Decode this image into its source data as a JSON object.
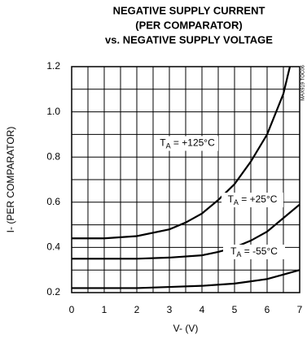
{
  "chart_data": {
    "type": "line",
    "title": [
      "NEGATIVE SUPPLY CURRENT",
      "(PER COMPARATOR)",
      "vs. NEGATIVE SUPPLY VOLTAGE"
    ],
    "xlabel": "V- (V)",
    "ylabel": "I- (PER COMPARATOR)",
    "watermark": "MAX919 TOC06",
    "xlim": [
      0,
      7
    ],
    "xticks": [
      0,
      1,
      2,
      3,
      4,
      5,
      6,
      7
    ],
    "ylim": [
      0.2,
      1.2
    ],
    "yticks": [
      0.2,
      0.4,
      0.6,
      0.8,
      {
        "value": 1.0,
        "label": "1.0"
      },
      1.2
    ],
    "grid": true,
    "minor_grid": true,
    "color": "#000000",
    "series": [
      {
        "label_parts": [
          "T",
          "A",
          " = +125°C"
        ],
        "x": [
          0,
          1,
          2,
          3,
          3.5,
          4,
          4.5,
          5,
          5.5,
          6,
          6.5,
          6.7
        ],
        "values": [
          0.44,
          0.44,
          0.45,
          0.48,
          0.51,
          0.55,
          0.61,
          0.68,
          0.78,
          0.9,
          1.08,
          1.2
        ]
      },
      {
        "label_parts": [
          "T",
          "A",
          " = +25°C"
        ],
        "x": [
          0,
          1,
          2,
          3,
          4,
          4.5,
          5,
          5.5,
          6,
          6.5,
          7
        ],
        "values": [
          0.35,
          0.35,
          0.35,
          0.355,
          0.365,
          0.38,
          0.4,
          0.43,
          0.47,
          0.53,
          0.59
        ]
      },
      {
        "label_parts": [
          "T",
          "A",
          " = -55°C"
        ],
        "x": [
          0,
          1,
          2,
          3,
          4,
          5,
          5.5,
          6,
          6.5,
          7
        ],
        "values": [
          0.22,
          0.22,
          0.22,
          0.225,
          0.23,
          0.24,
          0.25,
          0.26,
          0.28,
          0.3
        ]
      }
    ]
  }
}
